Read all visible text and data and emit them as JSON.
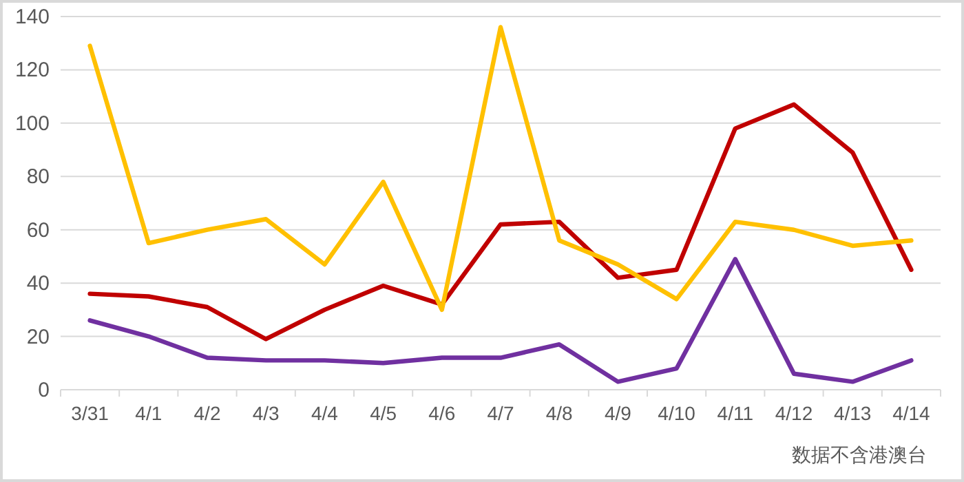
{
  "chart_data": {
    "type": "line",
    "categories": [
      "3/31",
      "4/1",
      "4/2",
      "4/3",
      "4/4",
      "4/5",
      "4/6",
      "4/7",
      "4/8",
      "4/9",
      "4/10",
      "4/11",
      "4/12",
      "4/13",
      "4/14"
    ],
    "series": [
      {
        "color": "#c00000",
        "values": [
          36,
          35,
          31,
          19,
          30,
          39,
          32,
          62,
          63,
          42,
          45,
          98,
          107,
          89,
          45
        ]
      },
      {
        "color": "#ffc000",
        "values": [
          129,
          55,
          60,
          64,
          47,
          78,
          30,
          136,
          56,
          47,
          34,
          63,
          60,
          54,
          56
        ]
      },
      {
        "color": "#7030a0",
        "values": [
          26,
          20,
          12,
          11,
          11,
          10,
          12,
          12,
          17,
          3,
          8,
          49,
          6,
          3,
          11
        ]
      }
    ],
    "ylim": [
      0,
      140
    ],
    "yticks": [
      0,
      20,
      40,
      60,
      80,
      100,
      120,
      140
    ],
    "grid": "y",
    "marker": "none",
    "line_style": "solid",
    "annotations": [
      "数据不含港澳台"
    ]
  }
}
